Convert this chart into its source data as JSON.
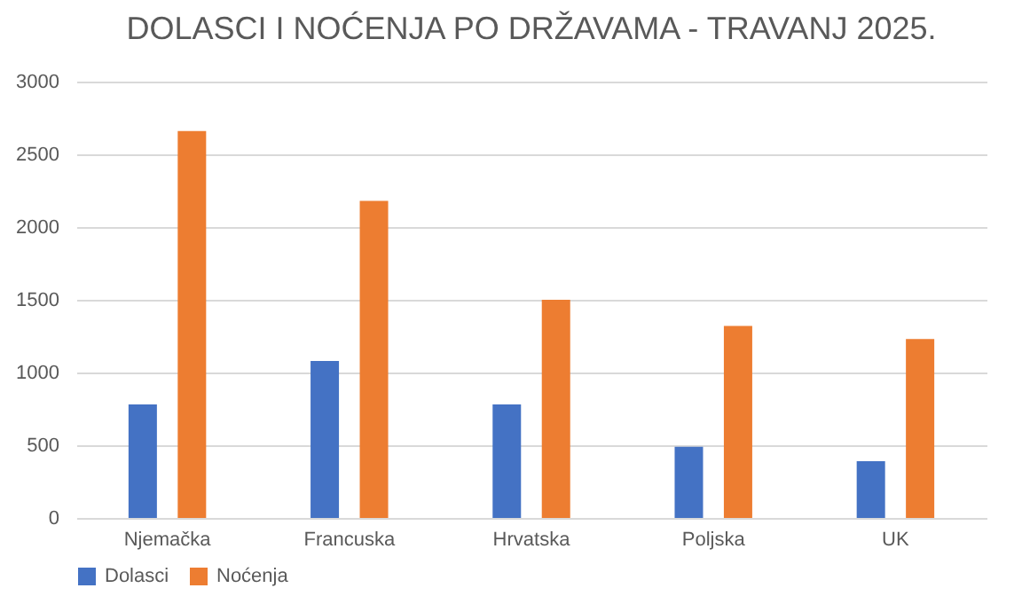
{
  "chart_data": {
    "type": "bar",
    "title": "DOLASCI I NOĆENJA PO DRŽAVAMA - TRAVANJ 2025.",
    "categories": [
      "Njemačka",
      "Francuska",
      "Hrvatska",
      "Poljska",
      "UK"
    ],
    "series": [
      {
        "name": "Dolasci",
        "color": "#4472c4",
        "values": [
          780,
          1080,
          780,
          490,
          390
        ]
      },
      {
        "name": "Noćenja",
        "color": "#ed7d31",
        "values": [
          2660,
          2180,
          1500,
          1320,
          1230
        ]
      }
    ],
    "ylim": [
      0,
      3000
    ],
    "yticks": [
      0,
      500,
      1000,
      1500,
      2000,
      2500,
      3000
    ],
    "grid": "y",
    "legend": "bottom"
  }
}
